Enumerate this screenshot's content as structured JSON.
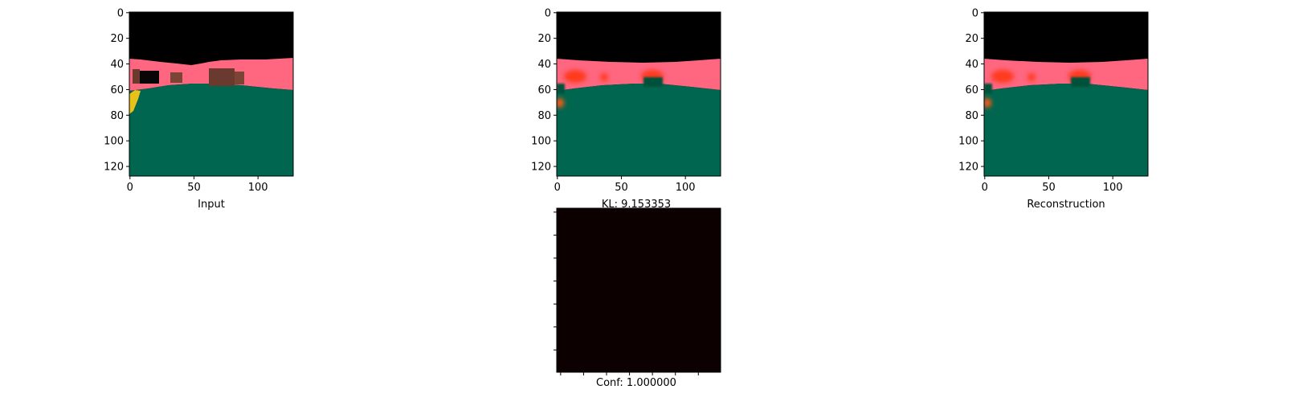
{
  "chart_data": [
    {
      "type": "image",
      "panel": "input",
      "xlabel": "Input",
      "xlim": [
        0,
        127
      ],
      "ylim": [
        127,
        0
      ],
      "xticks": [
        0,
        50,
        100
      ],
      "yticks": [
        0,
        20,
        40,
        60,
        80,
        100,
        120
      ],
      "regions": [
        {
          "name": "sky",
          "color": "#000000"
        },
        {
          "name": "wall",
          "color": "#ff6680"
        },
        {
          "name": "floor",
          "color": "#00664f"
        },
        {
          "name": "objects",
          "color": "#6b3a2e"
        },
        {
          "name": "left-object",
          "color": "#e8c21a"
        }
      ]
    },
    {
      "type": "image",
      "panel": "output",
      "xlabel": "KL: 9.153353",
      "xlim": [
        0,
        127
      ],
      "ylim": [
        127,
        0
      ],
      "xticks": [
        0,
        50,
        100
      ],
      "yticks": [
        0,
        20,
        40,
        60,
        80,
        100,
        120
      ],
      "regions": [
        {
          "name": "sky",
          "color": "#000000"
        },
        {
          "name": "wall",
          "color": "#ff6680"
        },
        {
          "name": "floor",
          "color": "#00664f"
        },
        {
          "name": "blobs",
          "color": "#ff3a1a"
        }
      ]
    },
    {
      "type": "image",
      "panel": "reconstruction",
      "xlabel": "Reconstruction",
      "xlim": [
        0,
        127
      ],
      "ylim": [
        127,
        0
      ],
      "xticks": [
        0,
        50,
        100
      ],
      "yticks": [
        0,
        20,
        40,
        60,
        80,
        100,
        120
      ],
      "regions": [
        {
          "name": "sky",
          "color": "#000000"
        },
        {
          "name": "wall",
          "color": "#ff6680"
        },
        {
          "name": "floor",
          "color": "#00664f"
        },
        {
          "name": "blobs",
          "color": "#ff3a1a"
        }
      ]
    },
    {
      "type": "heatmap",
      "panel": "confidence",
      "xlabel": "Conf: 1.000000",
      "fill_color": "#0d0000",
      "tick_count": 7
    }
  ]
}
